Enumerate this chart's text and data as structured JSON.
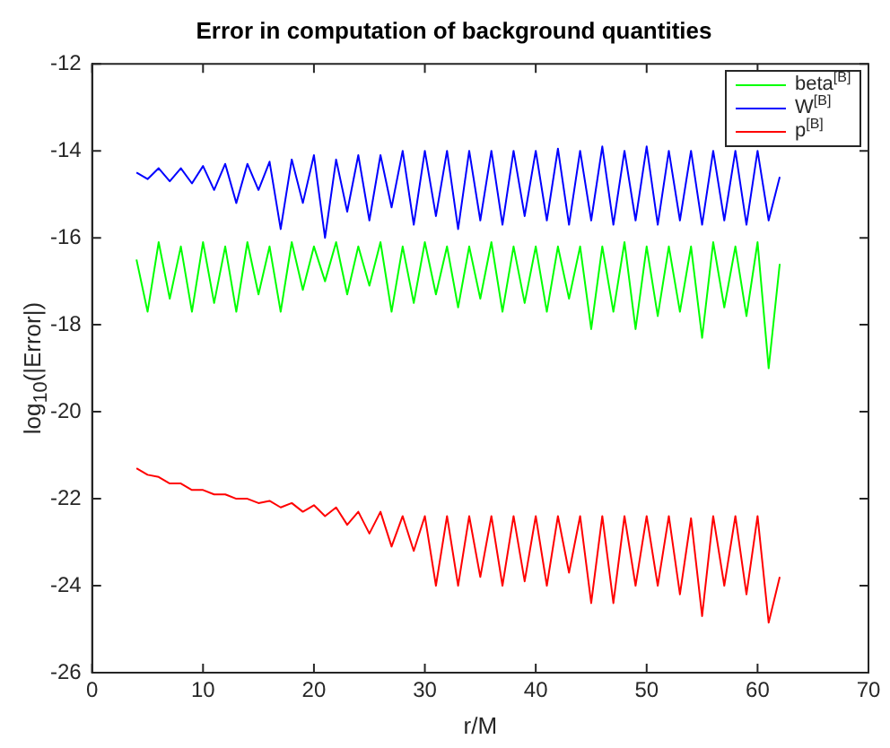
{
  "chart_data": {
    "type": "line",
    "title": "Error in computation of background quantities",
    "xlabel": "r/M",
    "ylabel": "log$_{10}$(|Error|)",
    "x": [
      4,
      5,
      6,
      7,
      8,
      9,
      10,
      11,
      12,
      13,
      14,
      15,
      16,
      17,
      18,
      19,
      20,
      21,
      22,
      23,
      24,
      25,
      26,
      27,
      28,
      29,
      30,
      31,
      32,
      33,
      34,
      35,
      36,
      37,
      38,
      39,
      40,
      41,
      42,
      43,
      44,
      45,
      46,
      47,
      48,
      49,
      50,
      51,
      52,
      53,
      54,
      55,
      56,
      57,
      58,
      59,
      60,
      61,
      62
    ],
    "series": [
      {
        "name": "beta$^{[B]}$",
        "color": "#00ff00",
        "values": [
          -16.5,
          -17.7,
          -16.1,
          -17.4,
          -16.2,
          -17.7,
          -16.1,
          -17.5,
          -16.2,
          -17.7,
          -16.1,
          -17.3,
          -16.2,
          -17.7,
          -16.1,
          -17.2,
          -16.2,
          -17.0,
          -16.1,
          -17.3,
          -16.2,
          -17.1,
          -16.1,
          -17.7,
          -16.2,
          -17.5,
          -16.1,
          -17.3,
          -16.2,
          -17.6,
          -16.2,
          -17.4,
          -16.1,
          -17.7,
          -16.2,
          -17.5,
          -16.2,
          -17.7,
          -16.2,
          -17.4,
          -16.2,
          -18.1,
          -16.2,
          -17.7,
          -16.1,
          -18.1,
          -16.2,
          -17.8,
          -16.2,
          -17.7,
          -16.2,
          -18.3,
          -16.1,
          -17.6,
          -16.2,
          -17.8,
          -16.1,
          -19.0,
          -16.6
        ]
      },
      {
        "name": "W$^{[B]}$",
        "color": "#0000ff",
        "values": [
          -14.5,
          -14.65,
          -14.4,
          -14.7,
          -14.4,
          -14.75,
          -14.35,
          -14.9,
          -14.3,
          -15.2,
          -14.3,
          -14.9,
          -14.25,
          -15.8,
          -14.2,
          -15.2,
          -14.1,
          -16.0,
          -14.2,
          -15.4,
          -14.1,
          -15.6,
          -14.1,
          -15.3,
          -14.0,
          -15.7,
          -14.0,
          -15.5,
          -14.0,
          -15.8,
          -14.0,
          -15.6,
          -14.0,
          -15.7,
          -14.0,
          -15.5,
          -14.0,
          -15.6,
          -13.95,
          -15.7,
          -14.0,
          -15.6,
          -13.9,
          -15.7,
          -14.0,
          -15.6,
          -13.9,
          -15.7,
          -14.0,
          -15.6,
          -14.0,
          -15.7,
          -14.0,
          -15.6,
          -14.0,
          -15.7,
          -14.0,
          -15.6,
          -14.6
        ]
      },
      {
        "name": "p$^{[B]}$",
        "color": "#ff0000",
        "values": [
          -21.3,
          -21.45,
          -21.5,
          -21.65,
          -21.65,
          -21.8,
          -21.8,
          -21.9,
          -21.9,
          -22.0,
          -22.0,
          -22.1,
          -22.05,
          -22.2,
          -22.1,
          -22.3,
          -22.15,
          -22.4,
          -22.2,
          -22.6,
          -22.3,
          -22.8,
          -22.3,
          -23.1,
          -22.4,
          -23.2,
          -22.4,
          -24.0,
          -22.4,
          -24.0,
          -22.4,
          -23.8,
          -22.4,
          -24.0,
          -22.4,
          -23.9,
          -22.4,
          -24.0,
          -22.4,
          -23.7,
          -22.4,
          -24.4,
          -22.4,
          -24.4,
          -22.4,
          -24.0,
          -22.4,
          -24.0,
          -22.4,
          -24.2,
          -22.45,
          -24.7,
          -22.4,
          -24.0,
          -22.4,
          -24.2,
          -22.4,
          -24.85,
          -23.8
        ]
      }
    ],
    "xlim": [
      0,
      70
    ],
    "xticks": [
      0,
      10,
      20,
      30,
      40,
      50,
      60,
      70
    ],
    "ylim": [
      -26,
      -12
    ],
    "yticks": [
      -26,
      -24,
      -22,
      -20,
      -18,
      -16,
      -14,
      -12
    ],
    "grid": false,
    "legend": "top right",
    "marker": "none",
    "line_style": "solid"
  }
}
